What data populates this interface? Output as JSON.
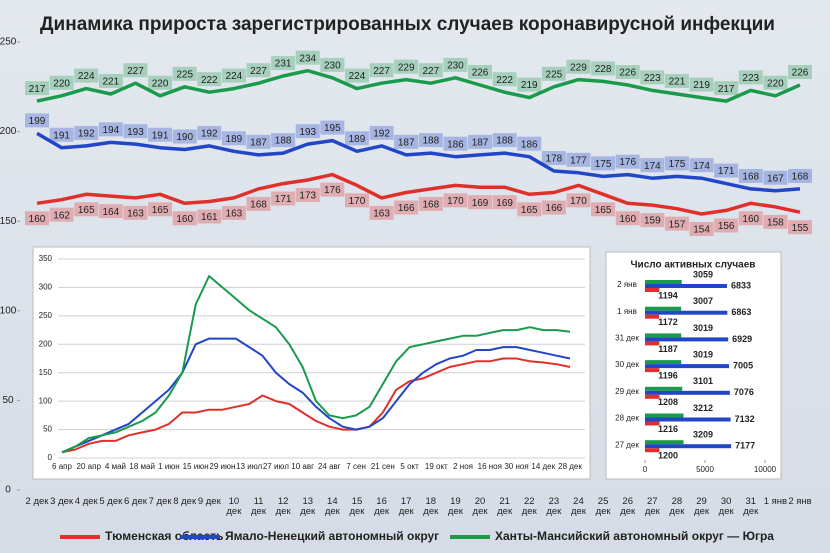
{
  "title": "Динамика прироста зарегистрированных случаев коронавирусной инфекции",
  "chart_data": [
    {
      "type": "line",
      "data_labels": true,
      "categories": [
        "2 дек",
        "3 дек",
        "4 дек",
        "5 дек",
        "6 дек",
        "7 дек",
        "8 дек",
        "9 дек",
        "10 дек",
        "11 дек",
        "12 дек",
        "13 дек",
        "14 дек",
        "15 дек",
        "16 дек",
        "17 дек",
        "18 дек",
        "19 дек",
        "20 дек",
        "21 дек",
        "22 дек",
        "23 дек",
        "24 дек",
        "25 дек",
        "26 дек",
        "27 дек",
        "28 дек",
        "29 дек",
        "30 дек",
        "31 дек",
        "1 янв",
        "2 янв"
      ],
      "ylim": [
        0,
        250
      ],
      "yticks": [
        0,
        50,
        100,
        150,
        200,
        250
      ],
      "series": [
        {
          "name": "Тюменская область",
          "color": "#e0302c",
          "values": [
            160,
            162,
            165,
            164,
            163,
            165,
            160,
            161,
            163,
            168,
            171,
            173,
            176,
            170,
            163,
            166,
            168,
            170,
            169,
            169,
            165,
            166,
            170,
            165,
            160,
            159,
            157,
            154,
            156,
            160,
            158,
            155
          ]
        },
        {
          "name": "Ямало-Ненецкий автономный округ",
          "color": "#2146c7",
          "values": [
            199,
            191,
            192,
            194,
            193,
            191,
            190,
            192,
            189,
            187,
            188,
            193,
            195,
            189,
            192,
            187,
            188,
            186,
            187,
            188,
            186,
            178,
            177,
            175,
            176,
            174,
            175,
            174,
            171,
            168,
            167,
            168
          ]
        },
        {
          "name": "Ханты-Мансийский автономный округ — Югра",
          "color": "#1a9b4b",
          "values": [
            217,
            220,
            224,
            221,
            227,
            220,
            225,
            222,
            224,
            227,
            231,
            234,
            230,
            224,
            227,
            229,
            227,
            230,
            226,
            222,
            219,
            225,
            229,
            228,
            226,
            223,
            221,
            219,
            217,
            223,
            220,
            226
          ]
        }
      ]
    },
    {
      "type": "line",
      "grid": true,
      "categories": [
        "6 апр",
        null,
        "20 апр",
        null,
        "4 май",
        null,
        "18 май",
        null,
        "1 июн",
        null,
        "15 июн",
        null,
        "29 июн",
        null,
        "13 июл",
        null,
        "27 июл",
        null,
        "10 авг",
        null,
        "24 авг",
        null,
        "7 сен",
        null,
        "21 сен",
        null,
        "5 окт",
        null,
        "19 окт",
        null,
        "2 ноя",
        null,
        "16 ноя",
        null,
        "30 ноя",
        null,
        "14 дек",
        null,
        "28 дек"
      ],
      "ylim": [
        0,
        350
      ],
      "yticks": [
        0,
        50,
        100,
        150,
        200,
        250,
        300,
        350
      ],
      "series": [
        {
          "color": "#e0302c",
          "values": [
            10,
            15,
            25,
            30,
            30,
            40,
            45,
            50,
            60,
            80,
            80,
            85,
            85,
            90,
            95,
            110,
            100,
            95,
            80,
            65,
            55,
            50,
            50,
            55,
            80,
            120,
            135,
            140,
            150,
            160,
            165,
            170,
            170,
            175,
            175,
            170,
            168,
            165,
            160
          ]
        },
        {
          "color": "#2146c7",
          "values": [
            10,
            20,
            30,
            40,
            50,
            60,
            80,
            100,
            120,
            150,
            200,
            210,
            210,
            210,
            195,
            180,
            150,
            130,
            115,
            90,
            70,
            55,
            50,
            55,
            70,
            100,
            130,
            150,
            165,
            175,
            180,
            190,
            190,
            195,
            195,
            190,
            185,
            180,
            175
          ]
        },
        {
          "color": "#1a9b4b",
          "values": [
            10,
            20,
            35,
            40,
            45,
            55,
            65,
            80,
            110,
            150,
            270,
            320,
            300,
            280,
            260,
            245,
            230,
            200,
            160,
            100,
            75,
            70,
            75,
            90,
            130,
            170,
            195,
            200,
            205,
            210,
            215,
            215,
            220,
            225,
            225,
            230,
            225,
            225,
            222
          ]
        }
      ]
    },
    {
      "type": "bar",
      "horizontal": true,
      "title": "Число активных случаев",
      "categories": [
        "2 янв",
        "1 янв",
        "31 дек",
        "30 дек",
        "29 дек",
        "28 дек",
        "27 дек"
      ],
      "xlim": [
        0,
        10000
      ],
      "xticks": [
        0,
        5000,
        10000
      ],
      "series": [
        {
          "color": "#1a9b4b",
          "values": [
            3059,
            3007,
            3019,
            3019,
            3101,
            3212,
            3209
          ]
        },
        {
          "color": "#2146c7",
          "values": [
            6833,
            6863,
            6929,
            7005,
            7076,
            7132,
            7177
          ]
        },
        {
          "color": "#e0302c",
          "values": [
            1194,
            1172,
            1187,
            1196,
            1208,
            1216,
            1200
          ]
        }
      ]
    }
  ]
}
